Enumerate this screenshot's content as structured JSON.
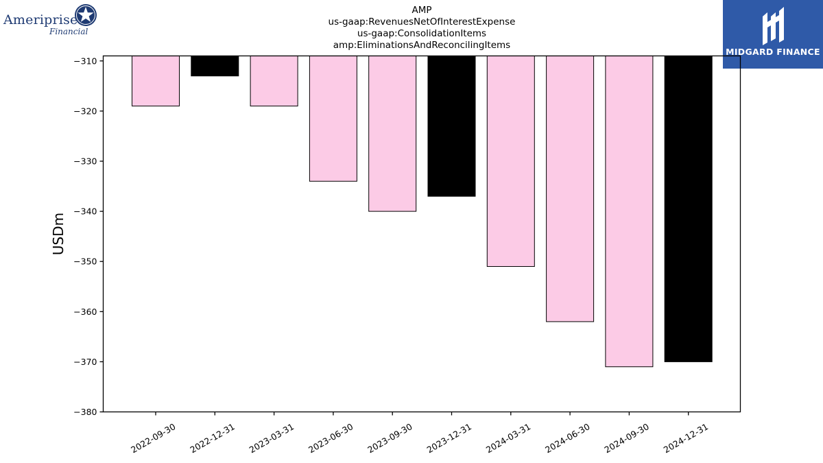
{
  "branding": {
    "left_logo": {
      "name": "Ameriprise",
      "subtitle": "Financial",
      "star_icon": "star-seal-icon",
      "color": "#1f3b73"
    },
    "right_logo": {
      "name": "MIDGARD FINANCE",
      "mark_icon": "midgard-m-icon",
      "background": "#2f5aa8"
    }
  },
  "title_lines": [
    "AMP",
    "us-gaap:RevenuesNetOfInterestExpense",
    "us-gaap:ConsolidationItems",
    "amp:EliminationsAndReconcilingItems"
  ],
  "chart_data": {
    "type": "bar",
    "title": "AMP",
    "subtitle": "us-gaap:RevenuesNetOfInterestExpense / us-gaap:ConsolidationItems / amp:EliminationsAndReconcilingItems",
    "xlabel": "",
    "ylabel": "USDm",
    "categories": [
      "2022-09-30",
      "2022-12-31",
      "2023-03-31",
      "2023-06-30",
      "2023-09-30",
      "2023-12-31",
      "2024-03-31",
      "2024-06-30",
      "2024-09-30",
      "2024-12-31"
    ],
    "values": [
      -319,
      -313,
      -319,
      -334,
      -340,
      -337,
      -351,
      -362,
      -371,
      -370
    ],
    "bar_colors": [
      "#fccbe6",
      "#000000",
      "#fccbe6",
      "#fccbe6",
      "#fccbe6",
      "#000000",
      "#fccbe6",
      "#fccbe6",
      "#fccbe6",
      "#000000"
    ],
    "ylim": [
      -380,
      -309
    ],
    "yticks": [
      -310,
      -320,
      -330,
      -340,
      -350,
      -360,
      -370,
      -380
    ],
    "ytick_labels": [
      "−310",
      "−320",
      "−330",
      "−340",
      "−350",
      "−360",
      "−370",
      "−380"
    ],
    "grid": false,
    "legend": "none"
  }
}
